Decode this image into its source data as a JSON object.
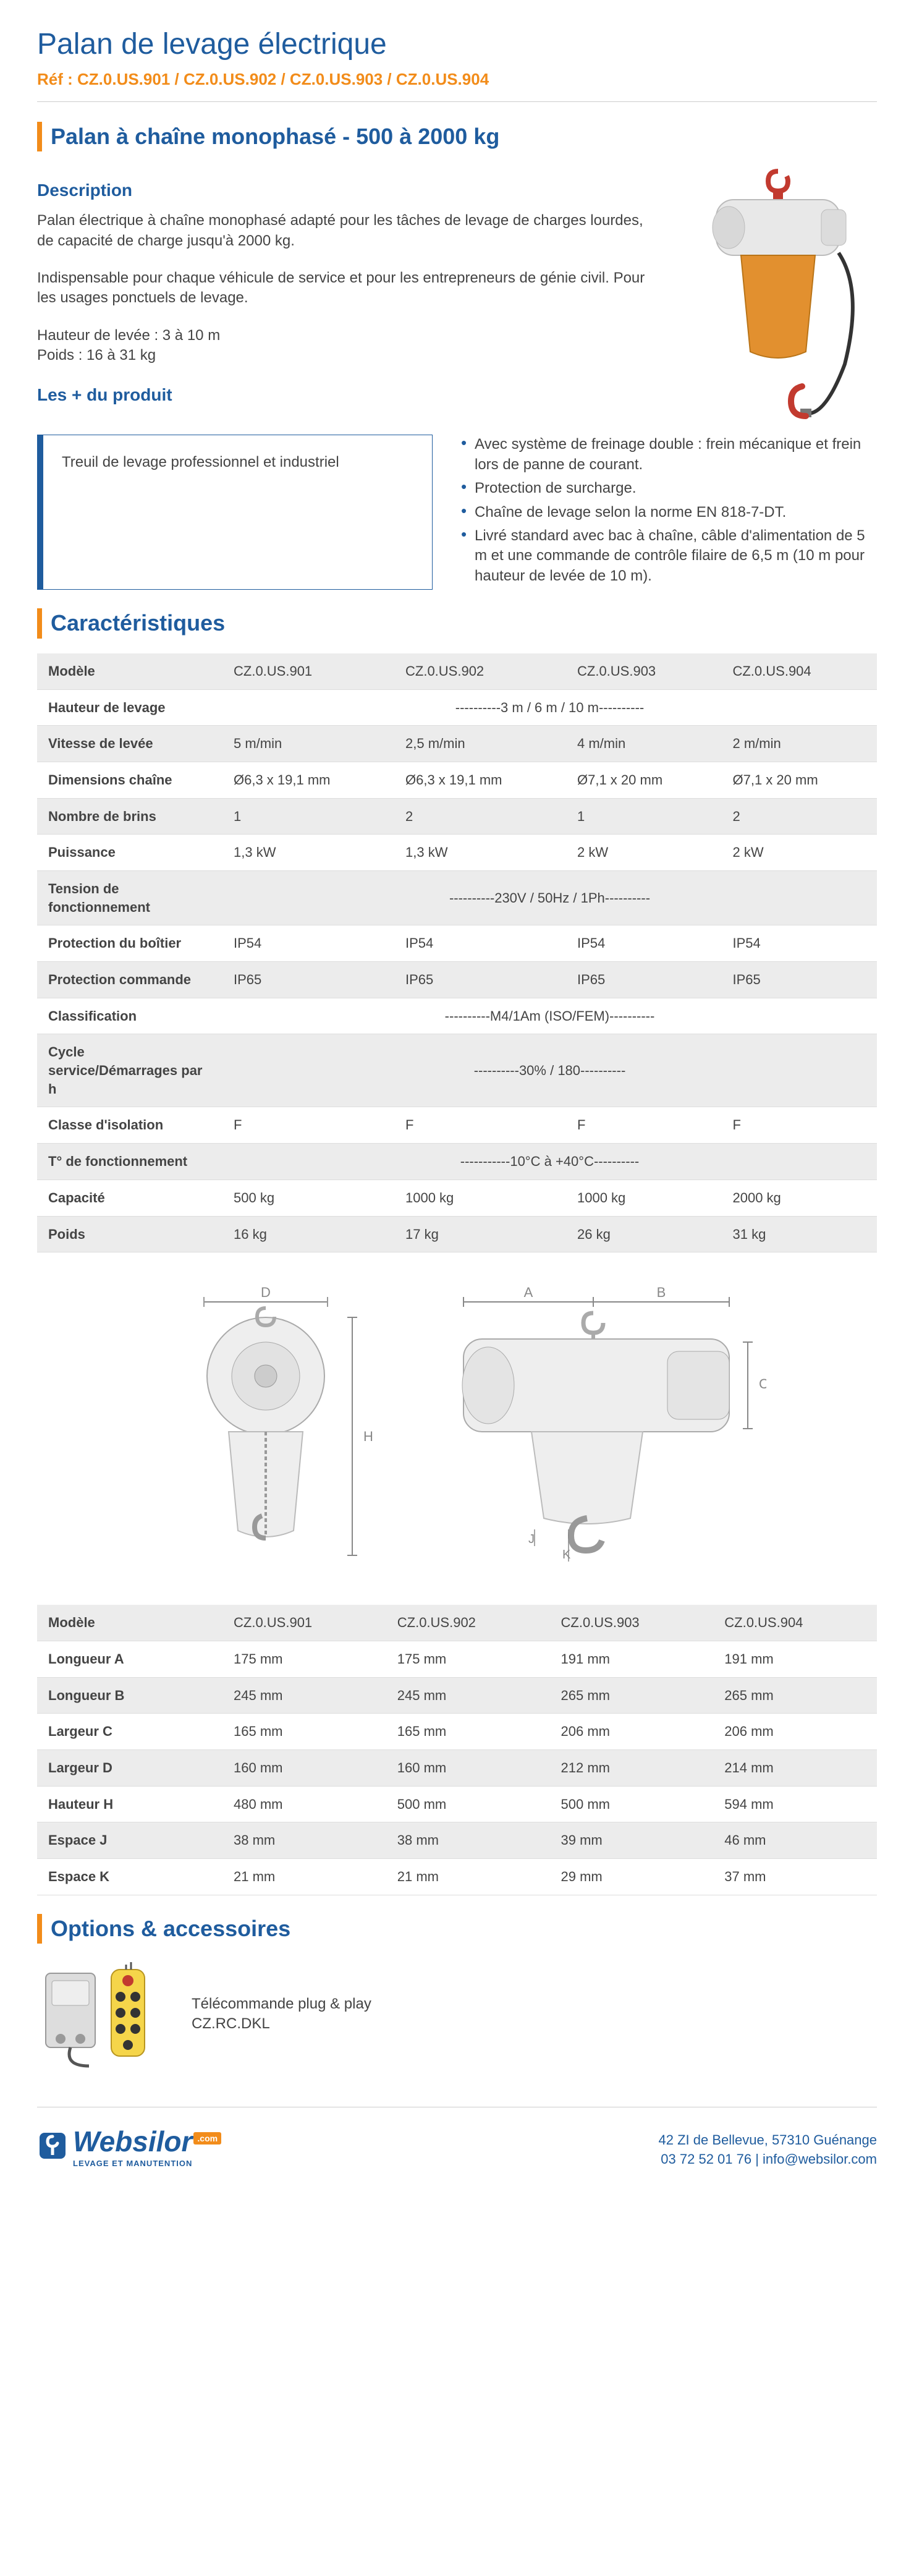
{
  "header": {
    "title": "Palan de levage électrique",
    "ref": "Réf : CZ.0.US.901 / CZ.0.US.902 / CZ.0.US.903 / CZ.0.US.904"
  },
  "section1": {
    "title": "Palan à chaîne monophasé - 500 à 2000 kg",
    "desc_h": "Description",
    "p1": "Palan électrique à chaîne monophasé adapté pour les tâches de levage de charges lourdes, de capacité de charge jusqu'à 2000 kg.",
    "p2": "Indispensable pour chaque véhicule de service et pour les entrepreneurs de génie civil. Pour les usages ponctuels de levage.",
    "p3a": "Hauteur de levée : 3 à 10 m",
    "p3b": "Poids : 16 à 31 kg",
    "plus_h": "Les + du produit",
    "plus_box": "Treuil de levage professionnel et industriel",
    "bullets": [
      "Avec système de freinage double : frein mécanique et frein lors de panne de courant.",
      "Protection de surcharge.",
      "Chaîne de levage selon la norme EN 818-7-DT.",
      "Livré standard avec bac à chaîne, câble d'alimentation de 5 m et une commande de contrôle filaire de 6,5 m (10 m pour hauteur de levée de 10 m)."
    ]
  },
  "charac": {
    "title": "Caractéristiques",
    "cols": [
      "CZ.0.US.901",
      "CZ.0.US.902",
      "CZ.0.US.903",
      "CZ.0.US.904"
    ],
    "rows": [
      {
        "label": "Modèle",
        "vals": [
          "CZ.0.US.901",
          "CZ.0.US.902",
          "CZ.0.US.903",
          "CZ.0.US.904"
        ]
      },
      {
        "label": "Hauteur de levage",
        "span": "----------3 m / 6 m / 10 m----------"
      },
      {
        "label": "Vitesse de levée",
        "vals": [
          "5 m/min",
          "2,5 m/min",
          "4 m/min",
          "2 m/min"
        ]
      },
      {
        "label": "Dimensions chaîne",
        "vals": [
          "Ø6,3 x 19,1 mm",
          "Ø6,3 x 19,1 mm",
          "Ø7,1 x 20 mm",
          "Ø7,1 x 20 mm"
        ]
      },
      {
        "label": "Nombre de brins",
        "vals": [
          "1",
          "2",
          "1",
          "2"
        ]
      },
      {
        "label": "Puissance",
        "vals": [
          "1,3 kW",
          "1,3 kW",
          "2 kW",
          "2 kW"
        ]
      },
      {
        "label": "Tension de fonctionnement",
        "span": "----------230V / 50Hz / 1Ph----------"
      },
      {
        "label": "Protection du boîtier",
        "vals": [
          "IP54",
          "IP54",
          "IP54",
          "IP54"
        ]
      },
      {
        "label": "Protection commande",
        "vals": [
          "IP65",
          "IP65",
          "IP65",
          "IP65"
        ]
      },
      {
        "label": "Classification",
        "span": "----------M4/1Am (ISO/FEM)----------"
      },
      {
        "label": "Cycle service/Démarrages par h",
        "span": "----------30% / 180----------"
      },
      {
        "label": "Classe d'isolation",
        "vals": [
          "F",
          "F",
          "F",
          "F"
        ]
      },
      {
        "label": "T° de fonctionnement",
        "span": "-----------10°C à +40°C----------"
      },
      {
        "label": "Capacité",
        "vals": [
          "500 kg",
          "1000 kg",
          "1000 kg",
          "2000 kg"
        ]
      },
      {
        "label": "Poids",
        "vals": [
          "16 kg",
          "17 kg",
          "26 kg",
          "31 kg"
        ]
      }
    ]
  },
  "diagram": {
    "labels": {
      "A": "A",
      "B": "B",
      "C": "C",
      "D": "D",
      "H": "H",
      "J": "J",
      "K": "K"
    },
    "stroke": "#888",
    "label_color": "#888",
    "label_fontsize": 22
  },
  "dims": {
    "rows": [
      {
        "label": "Modèle",
        "vals": [
          "CZ.0.US.901",
          "CZ.0.US.902",
          "CZ.0.US.903",
          "CZ.0.US.904"
        ]
      },
      {
        "label": "Longueur A",
        "vals": [
          "175 mm",
          "175 mm",
          "191 mm",
          "191 mm"
        ]
      },
      {
        "label": "Longueur B",
        "vals": [
          "245 mm",
          "245 mm",
          "265 mm",
          "265 mm"
        ]
      },
      {
        "label": "Largeur C",
        "vals": [
          "165 mm",
          "165 mm",
          "206 mm",
          "206 mm"
        ]
      },
      {
        "label": "Largeur D",
        "vals": [
          "160 mm",
          "160 mm",
          "212 mm",
          "214 mm"
        ]
      },
      {
        "label": "Hauteur H",
        "vals": [
          "480 mm",
          "500 mm",
          "500 mm",
          "594 mm"
        ]
      },
      {
        "label": "Espace J",
        "vals": [
          "38 mm",
          "38 mm",
          "39 mm",
          "46 mm"
        ]
      },
      {
        "label": "Espace K",
        "vals": [
          "21 mm",
          "21 mm",
          "29 mm",
          "37 mm"
        ]
      }
    ]
  },
  "options": {
    "title": "Options & accessoires",
    "item_line1": "Télécommande plug & play",
    "item_line2": "CZ.RC.DKL"
  },
  "footer": {
    "logo": "Websilor",
    "logo_sub": "LEVAGE ET MANUTENTION",
    "addr1": "42 ZI de Bellevue, 57310 Guénange",
    "addr2": "03 72 52 01 76 | info@websilor.com"
  },
  "colors": {
    "blue": "#1f5c9e",
    "orange": "#f28c1a",
    "row_alt": "#ececec",
    "border": "#dddddd",
    "hoist_body": "#e8e8e8",
    "hoist_bag": "#e2902f",
    "hook": "#c23a2f"
  }
}
